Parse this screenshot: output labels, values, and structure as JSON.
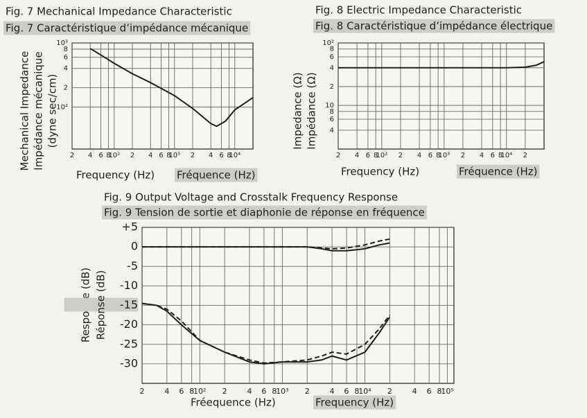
{
  "chart_data": [
    {
      "type": "line",
      "title": [
        "Fig. 7  Mechanical Impedance Characteristic",
        "Fig. 7  Caractéristique d’impédance mécanique"
      ],
      "ylabel": [
        "Mechanical Impedance",
        "Impédance mécanique",
        "(dyne sec/cm)"
      ],
      "xlabel": [
        "Frequency (Hz)",
        "Fréquence (Hz)"
      ],
      "log_x": true,
      "log_y": true,
      "grid": true,
      "xlim": [
        20,
        20000
      ],
      "ylim": [
        22,
        1000
      ],
      "xticks": [
        {
          "value": 20,
          "label": "2"
        },
        {
          "value": 40,
          "label": "4"
        },
        {
          "value": 60,
          "label": "6"
        },
        {
          "value": 80,
          "label": "8"
        },
        {
          "value": 100,
          "label": "10²"
        },
        {
          "value": 200,
          "label": "2"
        },
        {
          "value": 400,
          "label": "4"
        },
        {
          "value": 600,
          "label": "6"
        },
        {
          "value": 800,
          "label": "8"
        },
        {
          "value": 1000,
          "label": "10³"
        },
        {
          "value": 2000,
          "label": "2"
        },
        {
          "value": 4000,
          "label": "4"
        },
        {
          "value": 6000,
          "label": "6"
        },
        {
          "value": 8000,
          "label": "8"
        },
        {
          "value": 10000,
          "label": "10⁴"
        }
      ],
      "yticks": [
        {
          "value": 1000,
          "label": "10³"
        },
        {
          "value": 800,
          "label": "8"
        },
        {
          "value": 600,
          "label": "6"
        },
        {
          "value": 400,
          "label": "4"
        },
        {
          "value": 200,
          "label": "2"
        },
        {
          "value": 100,
          "label": "10²"
        }
      ],
      "x": [
        40,
        60,
        100,
        200,
        400,
        1000,
        2000,
        4000,
        5000,
        7000,
        10000,
        20000
      ],
      "series": [
        {
          "color": "#1e1e1e",
          "values": [
            820,
            650,
            480,
            330,
            240,
            150,
            95,
            55,
            50,
            60,
            90,
            140
          ]
        }
      ]
    },
    {
      "type": "line",
      "title": [
        "Fig. 8  Electric Impedance Characteristic",
        "Fig. 8  Caractéristique d’impédance électrique"
      ],
      "ylabel": [
        "Impedance (Ω)",
        "Impédance (Ω)"
      ],
      "xlabel": [
        "Frequency (Hz)",
        "Fréquence (Hz)"
      ],
      "log_x": true,
      "log_y": true,
      "grid": true,
      "xlim": [
        20,
        40000
      ],
      "ylim": [
        2,
        100
      ],
      "xticks": [
        {
          "value": 20,
          "label": "2"
        },
        {
          "value": 40,
          "label": "4"
        },
        {
          "value": 60,
          "label": "6"
        },
        {
          "value": 80,
          "label": "8"
        },
        {
          "value": 100,
          "label": "10²"
        },
        {
          "value": 200,
          "label": "2"
        },
        {
          "value": 400,
          "label": "4"
        },
        {
          "value": 600,
          "label": "6"
        },
        {
          "value": 800,
          "label": "8"
        },
        {
          "value": 1000,
          "label": "10³"
        },
        {
          "value": 2000,
          "label": "2"
        },
        {
          "value": 4000,
          "label": "4"
        },
        {
          "value": 6000,
          "label": "6"
        },
        {
          "value": 8000,
          "label": "8"
        },
        {
          "value": 10000,
          "label": "10⁴"
        },
        {
          "value": 20000,
          "label": "2"
        }
      ],
      "yticks": [
        {
          "value": 100,
          "label": "10²"
        },
        {
          "value": 80,
          "label": "8"
        },
        {
          "value": 60,
          "label": "6"
        },
        {
          "value": 40,
          "label": "4"
        },
        {
          "value": 20,
          "label": "2"
        },
        10,
        {
          "value": 8,
          "label": "8"
        },
        {
          "value": 6,
          "label": "6"
        },
        {
          "value": 4,
          "label": "4"
        }
      ],
      "x": [
        20,
        100,
        1000,
        10000,
        20000,
        30000,
        40000
      ],
      "series": [
        {
          "color": "#1e1e1e",
          "values": [
            40,
            40,
            40,
            40,
            41,
            44,
            50
          ]
        }
      ]
    },
    {
      "type": "line",
      "title": [
        "Fig. 9  Output Voltage and Crosstalk Frequency Response",
        "Fig. 9  Tension de sortie et diaphonie de réponse en fréquence"
      ],
      "ylabel": [
        "Response (dB)",
        "Réponse (dB)"
      ],
      "xlabel": [
        "Fréequence (Hz)",
        "Frequency (Hz)"
      ],
      "log_x": true,
      "log_y": false,
      "grid": true,
      "xlim": [
        20,
        120000
      ],
      "ylim": [
        -35,
        5
      ],
      "xticks": [
        {
          "value": 20,
          "label": "2"
        },
        {
          "value": 40,
          "label": "4"
        },
        {
          "value": 60,
          "label": "6"
        },
        {
          "value": 80,
          "label": "8"
        },
        {
          "value": 100,
          "label": "10²"
        },
        {
          "value": 200,
          "label": "2"
        },
        {
          "value": 400,
          "label": "4"
        },
        {
          "value": 600,
          "label": "6"
        },
        {
          "value": 800,
          "label": "8"
        },
        {
          "value": 1000,
          "label": "10³"
        },
        {
          "value": 2000,
          "label": "2"
        },
        {
          "value": 4000,
          "label": "4"
        },
        {
          "value": 6000,
          "label": "6"
        },
        {
          "value": 8000,
          "label": "8"
        },
        {
          "value": 10000,
          "label": "10⁴"
        },
        {
          "value": 20000,
          "label": "2"
        },
        {
          "value": 40000,
          "label": "4"
        },
        {
          "value": 60000,
          "label": "6"
        },
        {
          "value": 80000,
          "label": "8"
        },
        {
          "value": 100000,
          "label": "10⁵"
        }
      ],
      "yticks": [
        {
          "value": 5,
          "label": "+5"
        },
        0,
        -5,
        -10,
        -15,
        -20,
        -25,
        -30
      ],
      "x": [
        20,
        30,
        40,
        60,
        100,
        200,
        400,
        600,
        1000,
        2000,
        3000,
        4000,
        6000,
        10000,
        15000,
        20000
      ],
      "series": [
        {
          "color": "#1e1e1e",
          "dash": false,
          "values": [
            0,
            0,
            0,
            0,
            0,
            0,
            0,
            0,
            0,
            0,
            -0.5,
            -1,
            -1,
            -0.5,
            0.5,
            1
          ]
        },
        {
          "color": "#1e1e1e",
          "dash": true,
          "values": [
            0,
            0,
            0,
            0,
            0,
            0,
            0,
            0,
            0,
            0,
            -0.3,
            -0.5,
            -0.3,
            0.5,
            1.5,
            2
          ]
        },
        {
          "color": "#1e1e1e",
          "dash": false,
          "values": [
            -14.5,
            -15,
            -16.5,
            -20,
            -24,
            -27,
            -29.5,
            -30,
            -29.5,
            -29.5,
            -29,
            -28,
            -29,
            -27,
            -22,
            -18
          ]
        },
        {
          "color": "#1e1e1e",
          "dash": true,
          "values": [
            -14.5,
            -15,
            -16,
            -19,
            -24,
            -27,
            -29,
            -29.8,
            -29.5,
            -29,
            -28,
            -27,
            -27.5,
            -25,
            -21,
            -17.5
          ]
        }
      ]
    }
  ]
}
